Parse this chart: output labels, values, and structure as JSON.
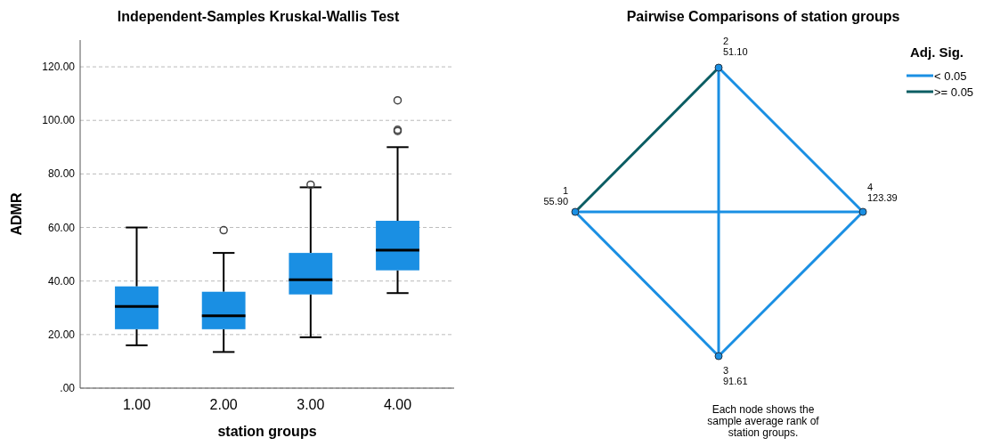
{
  "chart_data": [
    {
      "type": "box",
      "title": "Independent-Samples Kruskal-Wallis Test",
      "xlabel": "station groups",
      "ylabel": "ADMR",
      "categories": [
        "1.00",
        "2.00",
        "3.00",
        "4.00"
      ],
      "color": "#1a8fe3",
      "boxes": [
        {
          "low": 16,
          "q1": 22,
          "median": 30.5,
          "q3": 38,
          "high": 60
        },
        {
          "low": 13.5,
          "q1": 22,
          "median": 27,
          "q3": 36,
          "high": 50.5,
          "outliers": [
            59
          ]
        },
        {
          "low": 19,
          "q1": 35,
          "median": 40.5,
          "q3": 50.5,
          "high": 75,
          "outliers": [
            76
          ]
        },
        {
          "low": 35.5,
          "q1": 44,
          "median": 51.5,
          "q3": 62.5,
          "high": 90,
          "outliers": [
            96,
            96.5,
            107.5
          ]
        }
      ],
      "ylim": [
        0,
        130
      ],
      "yticks": [
        {
          "value": 0,
          "label": ".00"
        },
        {
          "value": 20,
          "label": "20.00"
        },
        {
          "value": 40,
          "label": "40.00"
        },
        {
          "value": 60,
          "label": "60.00"
        },
        {
          "value": 80,
          "label": "80.00"
        },
        {
          "value": 100,
          "label": "100.00"
        },
        {
          "value": 120,
          "label": "120.00"
        }
      ],
      "grid": "y"
    },
    {
      "type": "other",
      "title": "Pairwise Comparisons of station groups",
      "categories": [
        "1",
        "2",
        "3",
        "4"
      ],
      "value_labels": [
        "55.90",
        "51.10",
        "91.61",
        "123.39"
      ],
      "legend_title": "Adj. Sig.",
      "legend": "top right",
      "series": [
        {
          "name": "< 0.05",
          "color": "#1a8fe3",
          "values": [
            null,
            null,
            null,
            null
          ]
        },
        {
          "name": ">= 0.05",
          "color": "#0b5d63",
          "values": [
            null,
            null,
            null,
            null
          ]
        }
      ],
      "annotations": [
        "Each node shows the sample average rank of station groups."
      ]
    }
  ]
}
